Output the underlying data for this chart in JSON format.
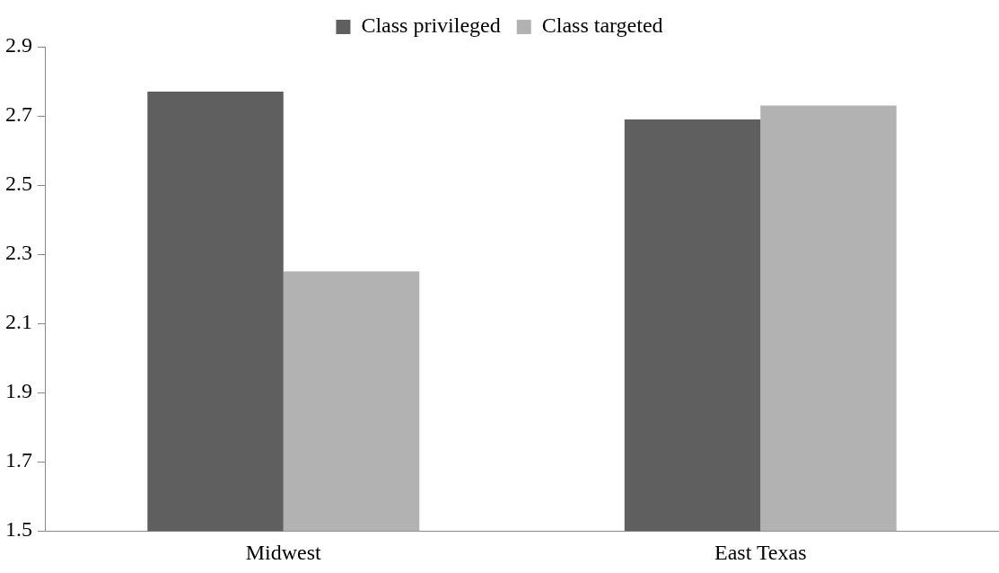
{
  "chart_data": {
    "type": "bar",
    "categories": [
      "Midwest",
      "East Texas"
    ],
    "series": [
      {
        "name": "Class privileged",
        "color": "#5f5f5f",
        "values": [
          2.77,
          2.69
        ]
      },
      {
        "name": "Class targeted",
        "color": "#b2b2b2",
        "values": [
          2.25,
          2.73
        ]
      }
    ],
    "ylim": [
      1.5,
      2.9
    ],
    "yticks": [
      1.5,
      1.7,
      1.9,
      2.1,
      2.3,
      2.5,
      2.7,
      2.9
    ],
    "grid": false,
    "legend": "top"
  }
}
